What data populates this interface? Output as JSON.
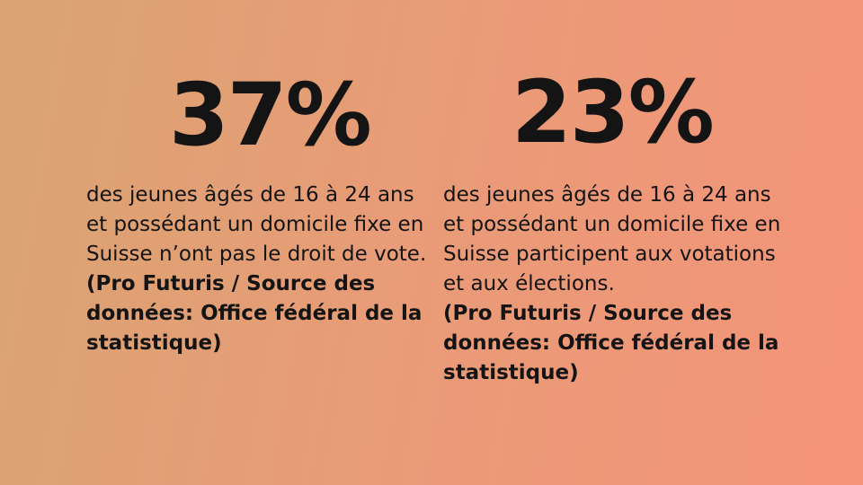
{
  "stats": [
    {
      "value": "37%",
      "description": "des jeunes âgés de 16 à 24 ans et possédant un domicile fixe en Suisse n’ont pas le droit de vote.",
      "source": "(Pro Futuris / Source des données: Office fédéral de la statistique)"
    },
    {
      "value": "23%",
      "description": "des jeunes âgés de 16 à 24 ans et possédant un domicile fixe en Suisse participent aux votations et aux élections.",
      "source": "(Pro Futuris / Source des données: Office fédéral de la statistique)"
    }
  ]
}
